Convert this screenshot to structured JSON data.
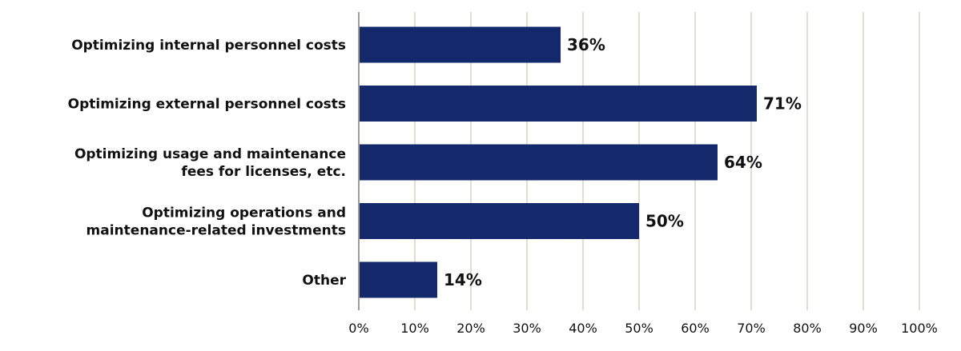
{
  "chart_data": {
    "type": "bar",
    "orientation": "horizontal",
    "categories": [
      [
        "Optimizing internal personnel costs"
      ],
      [
        "Optimizing external personnel costs"
      ],
      [
        "Optimizing usage and maintenance",
        "fees for licenses, etc."
      ],
      [
        "Optimizing operations and",
        "maintenance-related investments"
      ],
      [
        "Other"
      ]
    ],
    "values": [
      36,
      71,
      64,
      50,
      14
    ],
    "data_labels": [
      "36%",
      "71%",
      "64%",
      "50%",
      "14%"
    ],
    "xlim": [
      0,
      100
    ],
    "xticks": [
      0,
      10,
      20,
      30,
      40,
      50,
      60,
      70,
      80,
      90,
      100
    ],
    "xtick_labels": [
      "0%",
      "10%",
      "20%",
      "30%",
      "40%",
      "50%",
      "60%",
      "70%",
      "80%",
      "90%",
      "100%"
    ],
    "grid": true,
    "legend": "none",
    "colors": {
      "bar": "#13296b",
      "grid": "#e3dccf",
      "axis": "#a8998a"
    }
  }
}
